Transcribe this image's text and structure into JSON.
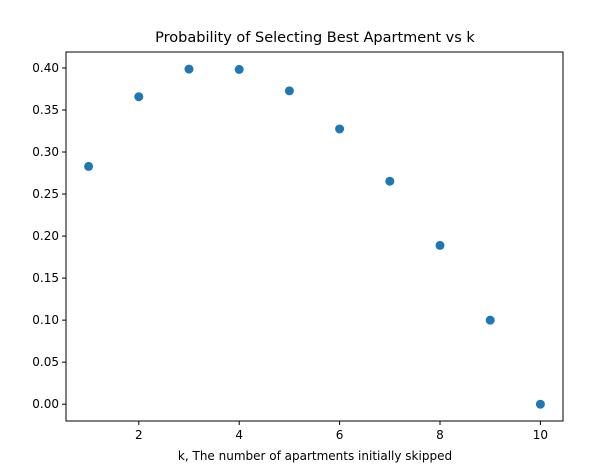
{
  "chart_data": {
    "type": "scatter",
    "title": "Probability of Selecting Best Apartment vs k",
    "xlabel": "k, The number of apartments initially skipped",
    "ylabel": "",
    "x": [
      1,
      2,
      3,
      4,
      5,
      6,
      7,
      8,
      9,
      10
    ],
    "y": [
      0.2829,
      0.3658,
      0.3987,
      0.3983,
      0.3728,
      0.3274,
      0.2653,
      0.1889,
      0.1,
      0.0
    ],
    "xlim": [
      0.55,
      10.45
    ],
    "ylim": [
      -0.02,
      0.419
    ],
    "xticks": [
      2,
      4,
      6,
      8,
      10
    ],
    "xtick_labels": [
      "2",
      "4",
      "6",
      "8",
      "10"
    ],
    "yticks": [
      0.0,
      0.05,
      0.1,
      0.15,
      0.2,
      0.25,
      0.3,
      0.35,
      0.4
    ],
    "ytick_labels": [
      "0.00",
      "0.05",
      "0.10",
      "0.15",
      "0.20",
      "0.25",
      "0.30",
      "0.35",
      "0.40"
    ],
    "grid": false,
    "legend": "none",
    "marker_color": "#1f77b4"
  }
}
